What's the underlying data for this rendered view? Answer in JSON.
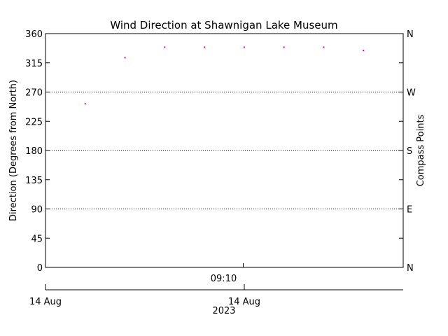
{
  "chart_data": {
    "type": "scatter",
    "title": "Wind Direction at Shawnigan Lake Museum",
    "ylabel": "Direction (Degrees from North)",
    "ylabel_right": "Compass Points",
    "ylim": [
      0,
      360
    ],
    "yticks": [
      "0",
      "45",
      "90",
      "135",
      "180",
      "225",
      "270",
      "315",
      "360"
    ],
    "compass_ticks": [
      {
        "deg": 0,
        "label": "N"
      },
      {
        "deg": 90,
        "label": "E"
      },
      {
        "deg": 180,
        "label": "S"
      },
      {
        "deg": 270,
        "label": "W"
      },
      {
        "deg": 360,
        "label": "N"
      }
    ],
    "gridlines_deg": [
      90,
      180,
      270
    ],
    "x_time_tick": "09:10",
    "x_date_labels": [
      {
        "label": "14 Aug",
        "year": ""
      },
      {
        "label": "14 Aug",
        "year": "2023"
      }
    ],
    "xlim_minutes": [
      0,
      90
    ],
    "point_color": "#cc00cc",
    "series": [
      {
        "x_minutes": [
          10,
          20,
          30,
          40,
          50,
          60,
          70,
          80
        ],
        "values": [
          252,
          323,
          339,
          339,
          339,
          339,
          339,
          334
        ]
      }
    ]
  }
}
